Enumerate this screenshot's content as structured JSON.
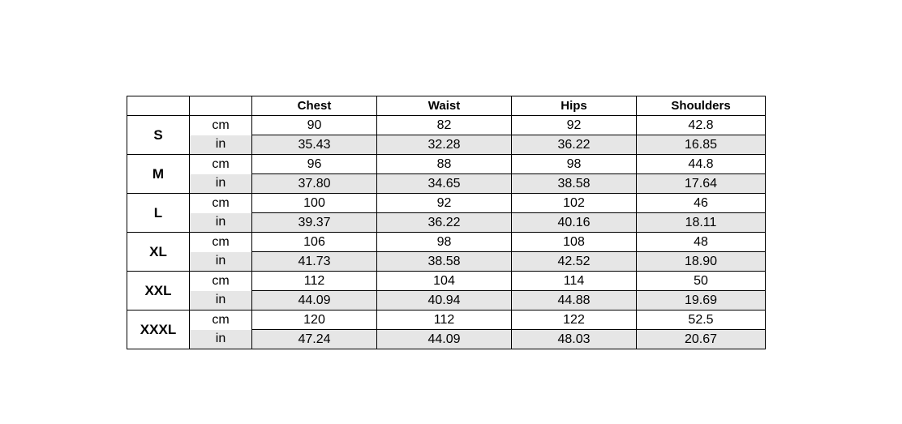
{
  "headers": [
    "",
    "",
    "Chest",
    "Waist",
    "Hips",
    "Shoulders"
  ],
  "colors": {
    "in_row_background": "#e6e6e6",
    "border": "#000000"
  },
  "rows": [
    {
      "size": "S",
      "cm_label": "cm",
      "in_label": "in",
      "cm": [
        "90",
        "82",
        "92",
        "42.8"
      ],
      "in": [
        "35.43",
        "32.28",
        "36.22",
        "16.85"
      ]
    },
    {
      "size": "M",
      "cm_label": "cm",
      "in_label": "in",
      "cm": [
        "96",
        "88",
        "98",
        "44.8"
      ],
      "in": [
        "37.80",
        "34.65",
        "38.58",
        "17.64"
      ]
    },
    {
      "size": "L",
      "cm_label": "cm",
      "in_label": "in",
      "cm": [
        "100",
        "92",
        "102",
        "46"
      ],
      "in": [
        "39.37",
        "36.22",
        "40.16",
        "18.11"
      ]
    },
    {
      "size": "XL",
      "cm_label": "cm",
      "in_label": "in",
      "cm": [
        "106",
        "98",
        "108",
        "48"
      ],
      "in": [
        "41.73",
        "38.58",
        "42.52",
        "18.90"
      ]
    },
    {
      "size": "XXL",
      "cm_label": "cm",
      "in_label": "in",
      "cm": [
        "112",
        "104",
        "114",
        "50"
      ],
      "in": [
        "44.09",
        "40.94",
        "44.88",
        "19.69"
      ]
    },
    {
      "size": "XXXL",
      "cm_label": "cm",
      "in_label": "in",
      "cm": [
        "120",
        "112",
        "122",
        "52.5"
      ],
      "in": [
        "47.24",
        "44.09",
        "48.03",
        "20.67"
      ]
    }
  ]
}
